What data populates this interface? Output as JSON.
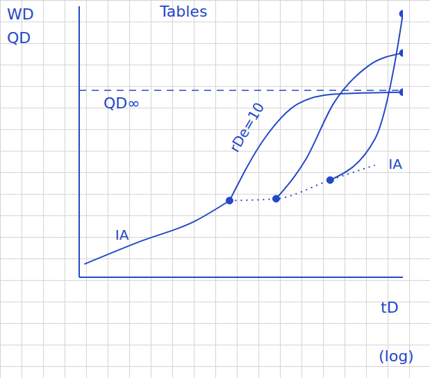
{
  "chart_data": {
    "type": "line",
    "title": "Tables",
    "y_label": [
      "WD",
      "QD"
    ],
    "x_label": [
      "tD",
      "(log)"
    ],
    "log": "x",
    "tick_labels": false,
    "xlim": [
      0.1,
      10000
    ],
    "ylim": [
      0,
      1.45
    ],
    "color": "#2348c8",
    "reference_lines": [
      {
        "y": 1,
        "label": "QD∞",
        "line_style": "dashed"
      }
    ],
    "series": [
      {
        "x": [
          0.12,
          0.85,
          6.1,
          21
        ],
        "values": [
          0.07,
          0.19,
          0.3,
          0.41
        ],
        "line_style": "solid",
        "marker": "none"
      },
      {
        "x": [
          21,
          110,
          752,
          3700
        ],
        "values": [
          0.41,
          0.42,
          0.52,
          0.6
        ],
        "line_style": "dotted",
        "marker": "none"
      },
      {
        "x": [
          21,
          72,
          245,
          850,
          10000
        ],
        "values": [
          0.41,
          0.74,
          0.93,
          0.98,
          0.99
        ],
        "line_style": "solid",
        "marker": "ends"
      },
      {
        "x": [
          110,
          316,
          850,
          2900,
          10000
        ],
        "values": [
          0.42,
          0.63,
          0.93,
          1.13,
          1.2
        ],
        "line_style": "solid",
        "marker": "ends"
      },
      {
        "x": [
          752,
          3700,
          7800,
          10000
        ],
        "values": [
          0.52,
          0.74,
          1.18,
          1.41
        ],
        "line_style": "solid",
        "marker": "ends"
      }
    ],
    "annotations": [
      {
        "text": "IA",
        "x": 0.36,
        "y": 0.22
      },
      {
        "text": "rDe=10",
        "x": 40,
        "y": 0.8,
        "rotate": true
      },
      {
        "text": "IA",
        "x": 6000,
        "y": 0.6
      }
    ]
  }
}
